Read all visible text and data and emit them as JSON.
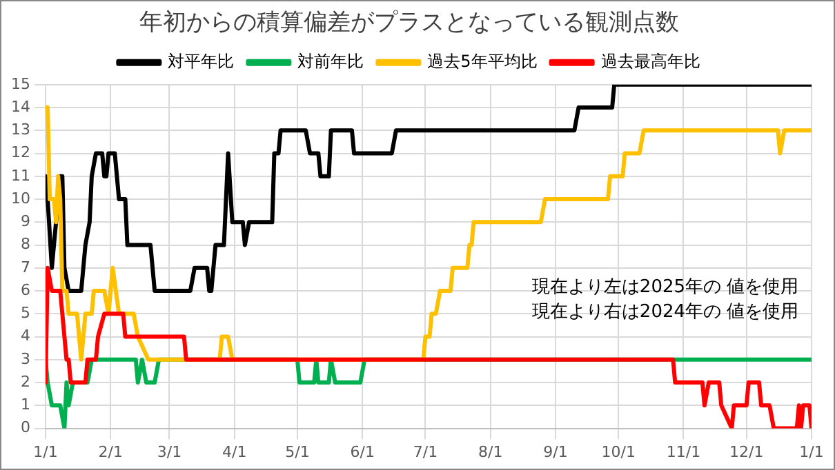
{
  "chart_data": {
    "type": "line",
    "title": "年初からの積算偏差がプラスとなっている観測点数",
    "xlim": [
      "2025-01-01",
      "2026-01-01"
    ],
    "xticks": [
      {
        "value": "2025-01-01",
        "label": "1/1"
      },
      {
        "value": "2025-02-01",
        "label": "2/1"
      },
      {
        "value": "2025-03-01",
        "label": "3/1"
      },
      {
        "value": "2025-04-01",
        "label": "4/1"
      },
      {
        "value": "2025-05-01",
        "label": "5/1"
      },
      {
        "value": "2025-06-01",
        "label": "6/1"
      },
      {
        "value": "2025-07-01",
        "label": "7/1"
      },
      {
        "value": "2025-08-01",
        "label": "8/1"
      },
      {
        "value": "2025-09-01",
        "label": "9/1"
      },
      {
        "value": "2025-10-01",
        "label": "10/1"
      },
      {
        "value": "2025-11-01",
        "label": "11/1"
      },
      {
        "value": "2025-12-01",
        "label": "12/1"
      },
      {
        "value": "2026-01-01",
        "label": "1/1"
      }
    ],
    "ylim": [
      0,
      15
    ],
    "yticks": [
      0,
      1,
      2,
      3,
      4,
      5,
      6,
      7,
      8,
      9,
      10,
      11,
      12,
      13,
      14,
      15
    ],
    "grid": true,
    "legend": "top",
    "marker": "none",
    "line_style": "solid",
    "annotations": [
      "現在より左は2025年の 値を使用",
      "現在より右は2024年の 値を使用"
    ],
    "series": [
      {
        "name": "対平年比",
        "color": "#000000",
        "x": [
          "2025-01-01",
          "2025-01-02",
          "2025-01-04",
          "2025-01-05",
          "2025-01-06",
          "2025-01-08",
          "2025-01-09",
          "2025-01-10",
          "2025-01-12",
          "2025-01-18",
          "2025-01-20",
          "2025-01-22",
          "2025-01-23",
          "2025-01-25",
          "2025-01-28",
          "2025-01-29",
          "2025-01-30",
          "2025-01-31",
          "2025-02-03",
          "2025-02-05",
          "2025-02-08",
          "2025-02-09",
          "2025-02-20",
          "2025-02-22",
          "2025-03-11",
          "2025-03-13",
          "2025-03-19",
          "2025-03-20",
          "2025-03-21",
          "2025-03-23",
          "2025-03-27",
          "2025-03-29",
          "2025-03-31",
          "2025-04-05",
          "2025-04-06",
          "2025-04-08",
          "2025-04-19",
          "2025-04-20",
          "2025-04-22",
          "2025-04-23",
          "2025-05-05",
          "2025-05-07",
          "2025-05-11",
          "2025-05-12",
          "2025-05-16",
          "2025-05-17",
          "2025-05-27",
          "2025-05-28",
          "2025-06-15",
          "2025-06-17",
          "2025-09-10",
          "2025-09-12",
          "2025-09-28",
          "2025-09-29",
          "2026-01-01"
        ],
        "values": [
          11,
          10,
          7,
          8,
          9,
          11,
          11,
          7,
          6,
          6,
          8,
          9,
          11,
          12,
          12,
          11,
          11,
          12,
          12,
          10,
          10,
          8,
          8,
          6,
          6,
          7,
          7,
          6,
          6,
          8,
          8,
          12,
          9,
          9,
          8,
          9,
          9,
          12,
          12,
          13,
          13,
          12,
          12,
          11,
          11,
          13,
          13,
          12,
          12,
          13,
          13,
          14,
          14,
          15,
          15
        ]
      },
      {
        "name": "対前年比",
        "color": "#00b050",
        "x": [
          "2025-01-01",
          "2025-01-02",
          "2025-01-04",
          "2025-01-08",
          "2025-01-10",
          "2025-01-11",
          "2025-01-12",
          "2025-01-14",
          "2025-01-21",
          "2025-01-23",
          "2025-02-13",
          "2025-02-14",
          "2025-02-16",
          "2025-02-18",
          "2025-02-22",
          "2025-02-24",
          "2025-05-01",
          "2025-05-02",
          "2025-05-09",
          "2025-05-10",
          "2025-05-11",
          "2025-05-16",
          "2025-05-17",
          "2025-05-19",
          "2025-05-31",
          "2025-06-02",
          "2026-01-01"
        ],
        "values": [
          3,
          2,
          1,
          1,
          0,
          2,
          1,
          2,
          2,
          3,
          3,
          2,
          3,
          2,
          2,
          3,
          3,
          2,
          2,
          3,
          2,
          2,
          3,
          2,
          2,
          3,
          3
        ]
      },
      {
        "name": "過去5年平均比",
        "color": "#ffc000",
        "x": [
          "2025-01-01",
          "2025-01-02",
          "2025-01-03",
          "2025-01-05",
          "2025-01-06",
          "2025-01-07",
          "2025-01-08",
          "2025-01-09",
          "2025-01-11",
          "2025-01-12",
          "2025-01-16",
          "2025-01-18",
          "2025-01-20",
          "2025-01-23",
          "2025-01-24",
          "2025-01-29",
          "2025-01-31",
          "2025-02-02",
          "2025-02-05",
          "2025-02-12",
          "2025-02-14",
          "2025-02-19",
          "2025-03-25",
          "2025-03-26",
          "2025-03-29",
          "2025-03-31",
          "2025-06-30",
          "2025-07-01",
          "2025-07-03",
          "2025-07-04",
          "2025-07-06",
          "2025-07-08",
          "2025-07-13",
          "2025-07-14",
          "2025-07-21",
          "2025-07-22",
          "2025-07-23",
          "2025-07-24",
          "2025-08-25",
          "2025-08-27",
          "2025-09-26",
          "2025-09-27",
          "2025-10-03",
          "2025-10-04",
          "2025-10-11",
          "2025-10-13",
          "2025-12-16",
          "2025-12-17",
          "2025-12-19",
          "2026-01-01"
        ],
        "values": [
          14,
          14,
          10,
          10,
          9,
          11,
          10,
          6,
          6,
          5,
          5,
          3,
          5,
          5,
          6,
          6,
          5,
          7,
          5,
          5,
          4,
          3,
          3,
          4,
          4,
          3,
          3,
          4,
          4,
          5,
          5,
          6,
          6,
          7,
          7,
          8,
          8,
          9,
          9,
          10,
          10,
          11,
          11,
          12,
          12,
          13,
          13,
          12,
          13,
          13
        ]
      },
      {
        "name": "過去最高年比",
        "color": "#ff0000",
        "x": [
          "2025-01-01",
          "2025-01-02",
          "2025-01-04",
          "2025-01-08",
          "2025-01-11",
          "2025-01-12",
          "2025-01-13",
          "2025-01-20",
          "2025-01-21",
          "2025-01-25",
          "2025-01-26",
          "2025-01-29",
          "2025-02-07",
          "2025-02-08",
          "2025-03-08",
          "2025-03-09",
          "2025-10-27",
          "2025-10-28",
          "2025-11-10",
          "2025-11-11",
          "2025-11-13",
          "2025-11-18",
          "2025-11-19",
          "2025-11-24",
          "2025-11-25",
          "2025-12-01",
          "2025-12-02",
          "2025-12-07",
          "2025-12-08",
          "2025-12-12",
          "2025-12-14",
          "2025-12-25",
          "2025-12-26",
          "2025-12-27",
          "2025-12-28",
          "2025-12-31",
          "2026-01-01"
        ],
        "values": [
          2,
          7,
          6,
          6,
          3,
          3,
          2,
          2,
          3,
          3,
          4,
          5,
          5,
          4,
          4,
          3,
          3,
          2,
          2,
          1,
          2,
          2,
          1,
          0,
          1,
          1,
          2,
          2,
          1,
          1,
          0,
          0,
          1,
          0,
          1,
          1,
          0
        ]
      }
    ]
  }
}
